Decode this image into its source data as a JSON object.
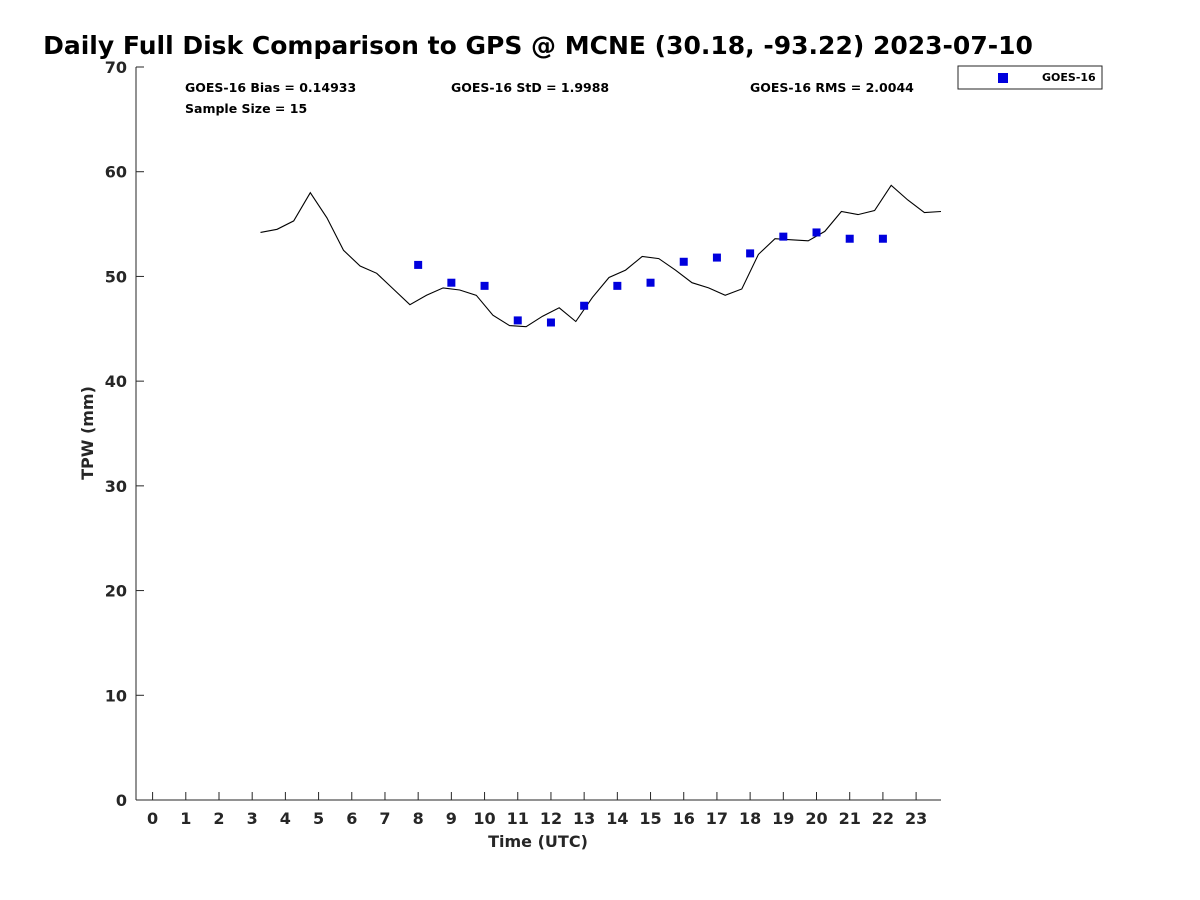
{
  "chart_data": {
    "type": "line",
    "title": "Daily Full Disk Comparison to GPS @ MCNE (30.18, -93.22) 2023-07-10",
    "xlabel": "Time (UTC)",
    "ylabel": "TPW (mm)",
    "xlim": [
      -0.5,
      23.75
    ],
    "ylim": [
      0,
      70
    ],
    "x_ticks": [
      0,
      1,
      2,
      3,
      4,
      5,
      6,
      7,
      8,
      9,
      10,
      11,
      12,
      13,
      14,
      15,
      16,
      17,
      18,
      19,
      20,
      21,
      22,
      23
    ],
    "y_ticks": [
      0,
      10,
      20,
      30,
      40,
      50,
      60,
      70
    ],
    "grid": false,
    "legend_position": "outside-top-right",
    "stats": {
      "bias": "GOES-16 Bias = 0.14933",
      "std": "GOES-16 StD = 1.9988",
      "rms": "GOES-16 RMS = 2.0044",
      "sample": "Sample Size = 15"
    },
    "series": [
      {
        "kind": "line",
        "color": "#000000",
        "x": [
          3.25,
          3.75,
          4.25,
          4.75,
          5.25,
          5.75,
          6.25,
          6.75,
          7.25,
          7.75,
          8.25,
          8.75,
          9.25,
          9.75,
          10.25,
          10.75,
          11.25,
          11.75,
          12.25,
          12.75,
          13.25,
          13.75,
          14.25,
          14.75,
          15.25,
          15.75,
          16.25,
          16.75,
          17.25,
          17.75,
          18.25,
          18.75,
          19.25,
          19.75,
          20.25,
          20.75,
          21.25,
          21.75,
          22.25,
          22.75,
          23.25,
          23.75
        ],
        "values": [
          54.2,
          54.5,
          55.3,
          58.0,
          55.6,
          52.5,
          51.0,
          50.3,
          48.8,
          47.3,
          48.2,
          48.9,
          48.7,
          48.2,
          46.3,
          45.3,
          45.2,
          46.2,
          47.0,
          45.7,
          48.0,
          49.9,
          50.6,
          51.9,
          51.7,
          50.6,
          49.4,
          48.9,
          48.2,
          48.8,
          52.1,
          53.6,
          53.5,
          53.4,
          54.3,
          56.2,
          55.9,
          56.3,
          58.7,
          57.3,
          56.1,
          56.2
        ]
      },
      {
        "kind": "scatter",
        "name": "GOES-16",
        "color": "#0000dd",
        "marker": "square",
        "x": [
          8,
          9,
          10,
          11,
          12,
          13,
          14,
          15,
          16,
          17,
          18,
          19,
          20,
          21,
          22
        ],
        "values": [
          51.1,
          49.4,
          49.1,
          45.8,
          45.6,
          47.2,
          49.1,
          49.4,
          51.4,
          51.8,
          52.2,
          53.8,
          54.2,
          53.6,
          53.6
        ]
      }
    ]
  }
}
